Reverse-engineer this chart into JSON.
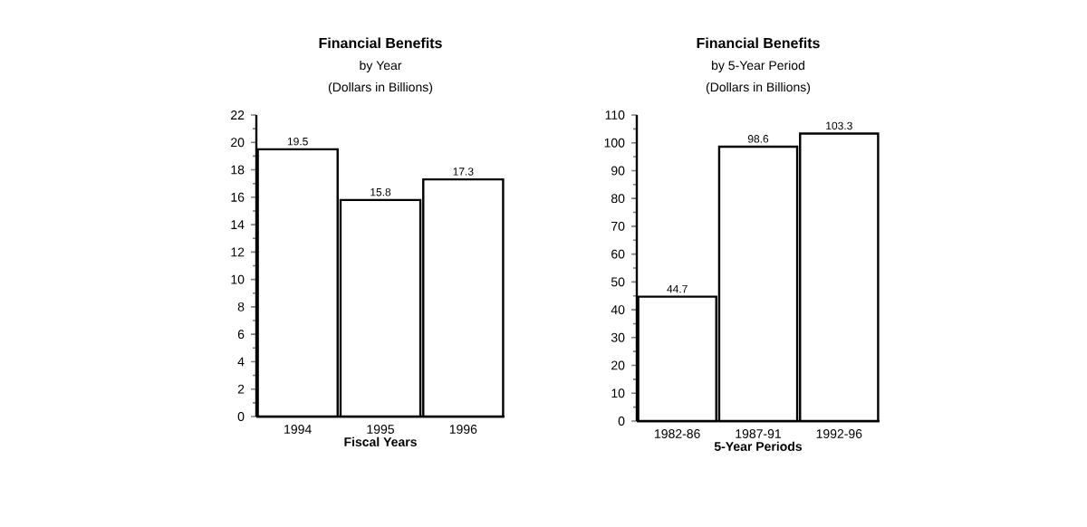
{
  "chart_data": [
    {
      "type": "bar",
      "title": "Financial Benefits",
      "subtitle": "by Year",
      "annotations": [
        "(Dollars in Billions)"
      ],
      "xlabel": "Fiscal Years",
      "categories": [
        "1994",
        "1995",
        "1996"
      ],
      "values": [
        19.5,
        15.8,
        17.3
      ],
      "color": "#ffffff",
      "data_labels": true,
      "ylim": [
        0,
        22
      ],
      "yticks": [
        0,
        2,
        4,
        6,
        8,
        10,
        12,
        14,
        16,
        18,
        20,
        22
      ],
      "grid": false
    },
    {
      "type": "bar",
      "title": "Financial Benefits",
      "subtitle": "by 5-Year Period",
      "annotations": [
        "(Dollars in Billions)"
      ],
      "xlabel": "5-Year Periods",
      "categories": [
        "1982-86",
        "1987-91",
        "1992-96"
      ],
      "values": [
        44.7,
        98.6,
        103.3
      ],
      "color": "#ffffff",
      "data_labels": true,
      "ylim": [
        0,
        110
      ],
      "yticks": [
        0,
        10,
        20,
        30,
        40,
        50,
        60,
        70,
        80,
        90,
        100,
        110
      ],
      "grid": false
    }
  ]
}
